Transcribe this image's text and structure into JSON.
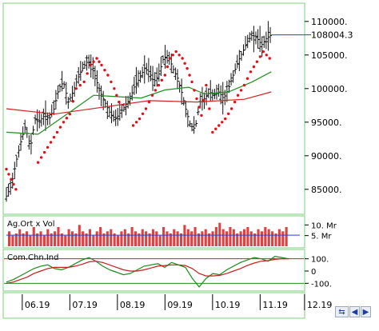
{
  "chart_data": [
    {
      "type": "candlestick",
      "panel": "price",
      "y_ticks": [
        "110000.",
        "105000.",
        "100000.",
        "95000.",
        "90000.",
        "85000."
      ],
      "last_value_label": "108004.3",
      "ylim": [
        82000,
        112000
      ],
      "x_range": [
        0,
        180
      ],
      "x_ticks": [
        {
          "label": "06.19",
          "x": 10
        },
        {
          "label": "07.19",
          "x": 40
        },
        {
          "label": "08.19",
          "x": 70
        },
        {
          "label": "09.19",
          "x": 100
        },
        {
          "label": "10.19",
          "x": 130
        },
        {
          "label": "11.19",
          "x": 160
        },
        {
          "label": "12.19",
          "x": 188
        }
      ],
      "close_path": [
        {
          "x": 0,
          "y": 84000
        },
        {
          "x": 3,
          "y": 85500
        },
        {
          "x": 6,
          "y": 89000
        },
        {
          "x": 9,
          "y": 92000
        },
        {
          "x": 12,
          "y": 94500
        },
        {
          "x": 15,
          "y": 91000
        },
        {
          "x": 18,
          "y": 95500
        },
        {
          "x": 21,
          "y": 95200
        },
        {
          "x": 24,
          "y": 96000
        },
        {
          "x": 27,
          "y": 95500
        },
        {
          "x": 30,
          "y": 97000
        },
        {
          "x": 33,
          "y": 100000
        },
        {
          "x": 36,
          "y": 101000
        },
        {
          "x": 39,
          "y": 98000
        },
        {
          "x": 42,
          "y": 99500
        },
        {
          "x": 45,
          "y": 101500
        },
        {
          "x": 48,
          "y": 103000
        },
        {
          "x": 51,
          "y": 104000
        },
        {
          "x": 54,
          "y": 103500
        },
        {
          "x": 57,
          "y": 101000
        },
        {
          "x": 60,
          "y": 99000
        },
        {
          "x": 63,
          "y": 97500
        },
        {
          "x": 66,
          "y": 96000
        },
        {
          "x": 69,
          "y": 95500
        },
        {
          "x": 72,
          "y": 96500
        },
        {
          "x": 75,
          "y": 97500
        },
        {
          "x": 78,
          "y": 98500
        },
        {
          "x": 81,
          "y": 100500
        },
        {
          "x": 84,
          "y": 101500
        },
        {
          "x": 87,
          "y": 103000
        },
        {
          "x": 90,
          "y": 102500
        },
        {
          "x": 93,
          "y": 101000
        },
        {
          "x": 96,
          "y": 102000
        },
        {
          "x": 99,
          "y": 104500
        },
        {
          "x": 102,
          "y": 105000
        },
        {
          "x": 105,
          "y": 103000
        },
        {
          "x": 108,
          "y": 101500
        },
        {
          "x": 111,
          "y": 99000
        },
        {
          "x": 113,
          "y": 97000
        },
        {
          "x": 116,
          "y": 94500
        },
        {
          "x": 119,
          "y": 94000
        },
        {
          "x": 122,
          "y": 98000
        },
        {
          "x": 125,
          "y": 98500
        },
        {
          "x": 128,
          "y": 99500
        },
        {
          "x": 131,
          "y": 99000
        },
        {
          "x": 134,
          "y": 99500
        },
        {
          "x": 137,
          "y": 98500
        },
        {
          "x": 140,
          "y": 100000
        },
        {
          "x": 143,
          "y": 102000
        },
        {
          "x": 146,
          "y": 104000
        },
        {
          "x": 149,
          "y": 105500
        },
        {
          "x": 152,
          "y": 107000
        },
        {
          "x": 155,
          "y": 108000
        },
        {
          "x": 158,
          "y": 107500
        },
        {
          "x": 161,
          "y": 106500
        },
        {
          "x": 164,
          "y": 107500
        },
        {
          "x": 167,
          "y": 108004
        }
      ],
      "ma_long_red": [
        {
          "x": 0,
          "y": 97000
        },
        {
          "x": 30,
          "y": 96200
        },
        {
          "x": 60,
          "y": 97200
        },
        {
          "x": 90,
          "y": 98200
        },
        {
          "x": 120,
          "y": 98000
        },
        {
          "x": 150,
          "y": 98400
        },
        {
          "x": 167,
          "y": 99500
        }
      ],
      "ma_green": [
        {
          "x": 0,
          "y": 93500
        },
        {
          "x": 20,
          "y": 93200
        },
        {
          "x": 40,
          "y": 96500
        },
        {
          "x": 55,
          "y": 99000
        },
        {
          "x": 70,
          "y": 98800
        },
        {
          "x": 85,
          "y": 98600
        },
        {
          "x": 100,
          "y": 99800
        },
        {
          "x": 115,
          "y": 100200
        },
        {
          "x": 125,
          "y": 99200
        },
        {
          "x": 140,
          "y": 99500
        },
        {
          "x": 155,
          "y": 101000
        },
        {
          "x": 167,
          "y": 102500
        }
      ],
      "parabolic_sar": [
        {
          "x": 0,
          "y": 88000
        },
        {
          "x": 3,
          "y": 86500
        },
        {
          "x": 6,
          "y": 85000
        },
        {
          "x": 20,
          "y": 89000
        },
        {
          "x": 24,
          "y": 90500
        },
        {
          "x": 28,
          "y": 92000
        },
        {
          "x": 32,
          "y": 93500
        },
        {
          "x": 36,
          "y": 95000
        },
        {
          "x": 40,
          "y": 96200
        },
        {
          "x": 44,
          "y": 100000
        },
        {
          "x": 49,
          "y": 101000
        },
        {
          "x": 53,
          "y": 103500
        },
        {
          "x": 57,
          "y": 104500
        },
        {
          "x": 60,
          "y": 103500
        },
        {
          "x": 64,
          "y": 102000
        },
        {
          "x": 68,
          "y": 100000
        },
        {
          "x": 71,
          "y": 98000
        },
        {
          "x": 80,
          "y": 94500
        },
        {
          "x": 84,
          "y": 95500
        },
        {
          "x": 88,
          "y": 97000
        },
        {
          "x": 92,
          "y": 99000
        },
        {
          "x": 96,
          "y": 100500
        },
        {
          "x": 100,
          "y": 102000
        },
        {
          "x": 103,
          "y": 104500
        },
        {
          "x": 107,
          "y": 105500
        },
        {
          "x": 111,
          "y": 104500
        },
        {
          "x": 114,
          "y": 103000
        },
        {
          "x": 117,
          "y": 101000
        },
        {
          "x": 120,
          "y": 98500
        },
        {
          "x": 123,
          "y": 96000
        },
        {
          "x": 126,
          "y": 100500
        },
        {
          "x": 130,
          "y": 93500
        },
        {
          "x": 134,
          "y": 94500
        },
        {
          "x": 138,
          "y": 95500
        },
        {
          "x": 142,
          "y": 97000
        },
        {
          "x": 146,
          "y": 99000
        },
        {
          "x": 150,
          "y": 100500
        },
        {
          "x": 154,
          "y": 102500
        },
        {
          "x": 158,
          "y": 104000
        },
        {
          "x": 162,
          "y": 105500
        },
        {
          "x": 166,
          "y": 104500
        }
      ]
    },
    {
      "type": "bar",
      "panel": "volume",
      "label": "Ag.Ort x Vol",
      "y_ticks": [
        "10. Mr",
        "5. Mr"
      ],
      "ylim": [
        0,
        12
      ],
      "ma_value": 5.2,
      "values": [
        7,
        5,
        6,
        8,
        6,
        7,
        5,
        9,
        6,
        7,
        5,
        8,
        6,
        7,
        9,
        6,
        5,
        8,
        7,
        6,
        10,
        7,
        6,
        8,
        5,
        7,
        9,
        6,
        7,
        8,
        6,
        5,
        7,
        8,
        6,
        9,
        7,
        6,
        8,
        7,
        6,
        8,
        7,
        5,
        9,
        7,
        6,
        8,
        7,
        6,
        10,
        8,
        7,
        9,
        6,
        7,
        8,
        6,
        7,
        9,
        11,
        8,
        7,
        9,
        8,
        6,
        7,
        8,
        9,
        7,
        6,
        8,
        7,
        9,
        8,
        7,
        6,
        8,
        7,
        9
      ]
    },
    {
      "type": "line",
      "panel": "oscillator",
      "label": "Com.Chn.Ind",
      "y_ticks": [
        "100.",
        "0",
        "-100."
      ],
      "ylim": [
        -150,
        150
      ],
      "thresholds": [
        100,
        -100
      ],
      "series": [
        {
          "color": "#1a8a1a",
          "values": [
            -90,
            -70,
            -40,
            -10,
            20,
            40,
            50,
            20,
            10,
            30,
            60,
            90,
            110,
            80,
            40,
            10,
            -10,
            -30,
            -20,
            10,
            40,
            50,
            60,
            30,
            70,
            50,
            30,
            -60,
            -130,
            -60,
            -20,
            -30,
            10,
            40,
            70,
            90,
            110,
            100,
            80,
            120,
            110,
            100
          ]
        },
        {
          "color": "#c81e1e",
          "values": [
            -100,
            -90,
            -70,
            -50,
            -20,
            0,
            20,
            30,
            30,
            30,
            40,
            55,
            75,
            80,
            70,
            50,
            30,
            10,
            0,
            0,
            10,
            25,
            40,
            45,
            50,
            50,
            45,
            20,
            -20,
            -40,
            -40,
            -35,
            -20,
            0,
            20,
            45,
            65,
            80,
            85,
            95,
            100,
            100
          ]
        }
      ]
    }
  ]
}
